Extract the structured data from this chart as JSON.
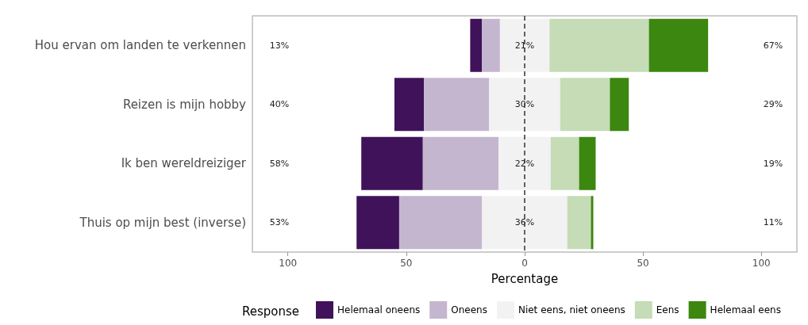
{
  "chart_data": {
    "type": "bar",
    "orientation": "horizontal",
    "xlabel": "Percentage",
    "legend_title": "Response",
    "legend": "bottom",
    "grid": false,
    "categories": [
      "Hou ervan om landen te verkennen",
      "Reizen is mijn hobby",
      "Ik ben wereldreiziger",
      "Thuis op mijn best (inverse)"
    ],
    "xlim": [
      -115,
      115
    ],
    "xticks": [
      {
        "value": -100,
        "label": "100"
      },
      {
        "value": -50,
        "label": "50"
      },
      0,
      50,
      100
    ],
    "series": [
      {
        "name": "Helemaal oneens",
        "color": "#3f1259",
        "base": [
          -23,
          -55,
          -69,
          -71
        ],
        "values": [
          5,
          12.5,
          26,
          18
        ]
      },
      {
        "name": "Oneens",
        "color": "#c5b6cf",
        "base": [
          -18,
          -42.5,
          -43,
          -53
        ],
        "values": [
          8,
          27.5,
          32,
          35
        ]
      },
      {
        "name": "Niet eens, niet oneens",
        "color": "#f2f2f2",
        "base": [
          -10.5,
          -15,
          -11,
          -18
        ],
        "values": [
          21,
          30,
          22,
          36
        ],
        "value_labels": [
          "21%",
          "30%",
          "22%",
          "36%"
        ]
      },
      {
        "name": "Eens",
        "color": "#c5dcb6",
        "base": [
          10.5,
          15,
          11,
          18
        ],
        "values": [
          42,
          21,
          12,
          10
        ]
      },
      {
        "name": "Helemaal eens",
        "color": "#3b870f",
        "base": [
          52.5,
          36,
          23,
          28
        ],
        "values": [
          25,
          8,
          7,
          1
        ]
      }
    ],
    "ref_lines": [
      {
        "axis": "x",
        "value": 0,
        "color": "#333333",
        "line_style": "dashed"
      }
    ],
    "annotations": [
      "13%",
      "40%",
      "58%",
      "53%",
      "67%",
      "29%",
      "19%",
      "11%"
    ]
  }
}
